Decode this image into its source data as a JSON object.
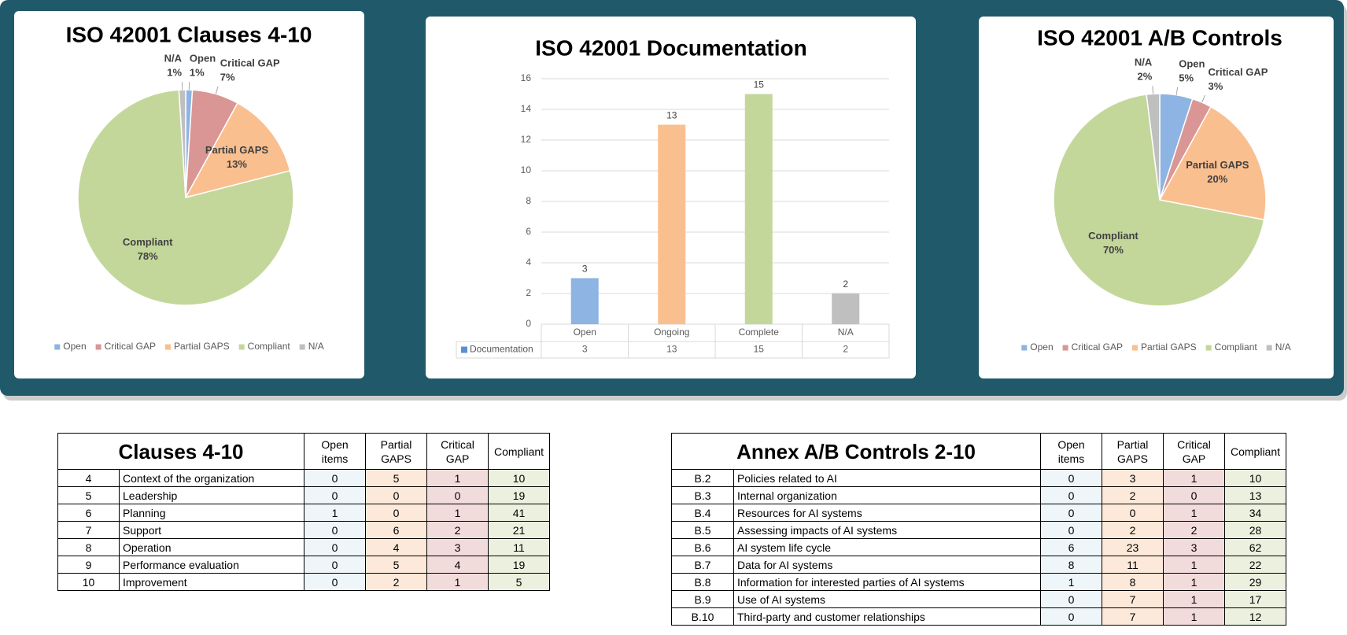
{
  "chart_data": [
    {
      "type": "pie",
      "title": "ISO 42001 Clauses 4-10",
      "categories": [
        "Open",
        "Critical GAP",
        "Partial GAPS",
        "Compliant",
        "N/A"
      ],
      "values": [
        1,
        7,
        13,
        78,
        1
      ],
      "value_labels": [
        "1%",
        "7%",
        "13%",
        "78%",
        "1%"
      ],
      "colors": [
        "#8db4e2",
        "#da9694",
        "#fabf8f",
        "#c4d79b",
        "#bfbfbf"
      ],
      "legend": "bottom"
    },
    {
      "type": "bar",
      "title": "ISO 42001 Documentation",
      "categories": [
        "Open",
        "Ongoing",
        "Complete",
        "N/A"
      ],
      "series": [
        {
          "name": "Documentation",
          "color": "#5b8fd0",
          "values": [
            3,
            13,
            15,
            2
          ]
        }
      ],
      "colors": [
        "#8db4e2",
        "#fabf8f",
        "#c4d79b",
        "#bfbfbf"
      ],
      "ylim": [
        0,
        16
      ],
      "yticks": [
        0,
        2,
        4,
        6,
        8,
        10,
        12,
        14,
        16
      ],
      "grid": true,
      "data_table": true
    },
    {
      "type": "pie",
      "title": "ISO 42001 A/B Controls",
      "categories": [
        "Open",
        "Critical GAP",
        "Partial GAPS",
        "Compliant",
        "N/A"
      ],
      "values": [
        5,
        3,
        20,
        70,
        2
      ],
      "value_labels": [
        "5%",
        "3%",
        "20%",
        "70%",
        "2%"
      ],
      "colors": [
        "#8db4e2",
        "#da9694",
        "#fabf8f",
        "#c4d79b",
        "#bfbfbf"
      ],
      "legend": "bottom"
    }
  ],
  "tables": [
    {
      "title": "Clauses 4-10",
      "columns": [
        "Open items",
        "Partial GAPS",
        "Critical GAP",
        "Compliant"
      ],
      "rows": [
        [
          4,
          "Context of the organization",
          0,
          5,
          1,
          10
        ],
        [
          5,
          "Leadership",
          0,
          0,
          0,
          19
        ],
        [
          6,
          "Planning",
          1,
          0,
          1,
          41
        ],
        [
          7,
          "Support",
          0,
          6,
          2,
          21
        ],
        [
          8,
          "Operation",
          0,
          4,
          3,
          11
        ],
        [
          9,
          "Performance evaluation",
          0,
          5,
          4,
          19
        ],
        [
          10,
          "Improvement",
          0,
          2,
          1,
          5
        ]
      ]
    },
    {
      "title": "Annex A/B Controls 2-10",
      "columns": [
        "Open items",
        "Partial GAPS",
        "Critical GAP",
        "Compliant"
      ],
      "rows": [
        [
          "B.2",
          "Policies related to AI",
          0,
          3,
          1,
          10
        ],
        [
          "B.3",
          "Internal organization",
          0,
          2,
          0,
          13
        ],
        [
          "B.4",
          "Resources for AI systems",
          0,
          0,
          1,
          34
        ],
        [
          "B.5",
          "Assessing impacts of AI systems",
          0,
          2,
          2,
          28
        ],
        [
          "B.6",
          "AI system life cycle",
          6,
          23,
          3,
          62
        ],
        [
          "B.7",
          "Data for AI systems",
          8,
          11,
          1,
          22
        ],
        [
          "B.8",
          "Information for interested parties of AI systems",
          1,
          8,
          1,
          29
        ],
        [
          "B.9",
          "Use of AI systems",
          0,
          7,
          1,
          17
        ],
        [
          "B.10",
          "Third-party and customer relationships",
          0,
          7,
          1,
          12
        ]
      ]
    }
  ]
}
